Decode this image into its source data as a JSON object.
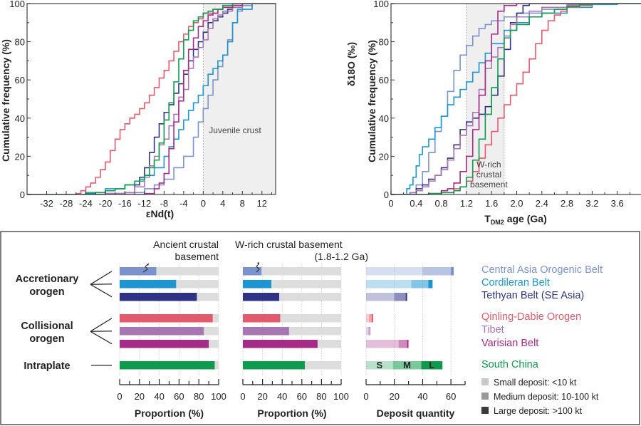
{
  "colors": {
    "caob": "#7b93cc",
    "cordilleran": "#1b95d3",
    "tethyan": "#2e3386",
    "qinling": "#e45a6c",
    "tibet": "#a777b4",
    "varisian": "#a62a87",
    "south_china": "#0f9b4d",
    "bg_bar": "#dddddd",
    "shade": "#efefef"
  },
  "chart_data": [
    {
      "id": "end",
      "type": "line",
      "step": true,
      "xlabel": "εNd(t)",
      "ylabel": "Cumulative frequency (%)",
      "xlim": [
        -36,
        14.8
      ],
      "ylim": [
        0,
        100
      ],
      "xticks": [
        -32,
        -28,
        -24,
        -20,
        -16,
        -12,
        -8,
        -4,
        0,
        4,
        8,
        12
      ],
      "yticks": [
        0,
        20,
        40,
        60,
        80,
        100
      ],
      "shaded_region": {
        "from": 0,
        "to": 14.8,
        "label": "Juvenile crust"
      },
      "series": [
        {
          "name": "Central Asia Orogenic Belt",
          "key": "caob",
          "x": [
            -36,
            -20,
            -16,
            -12,
            -10,
            -8,
            -6,
            -4,
            -2,
            -1,
            0,
            1,
            2,
            3,
            4,
            5,
            6,
            7,
            8,
            10,
            14.8
          ],
          "y": [
            0,
            0.5,
            1,
            3,
            5,
            8,
            14,
            20,
            30,
            38,
            45,
            52,
            60,
            67,
            73,
            81,
            90,
            96,
            99,
            100,
            100
          ]
        },
        {
          "name": "Cordileran Belt",
          "key": "cordilleran",
          "x": [
            -36,
            -24,
            -20,
            -16,
            -14,
            -12,
            -10,
            -8,
            -7,
            -6,
            -5,
            -4,
            -3,
            -2,
            -1,
            0,
            1,
            2,
            3,
            4,
            5,
            6,
            7,
            10,
            14.8
          ],
          "y": [
            0,
            1,
            3,
            5,
            7,
            10,
            14,
            20,
            25,
            29,
            34,
            39,
            44,
            48,
            52,
            57,
            63,
            66,
            70,
            73,
            80,
            90,
            97,
            100,
            100
          ]
        },
        {
          "name": "Tethyan Belt (SE Asia)",
          "key": "tethyan",
          "x": [
            -36,
            -20,
            -16,
            -14,
            -13,
            -12,
            -11,
            -10,
            -9,
            -8,
            -7,
            -6,
            -5,
            -4,
            -3,
            -2,
            -1,
            0,
            1,
            2,
            3,
            4,
            5,
            6,
            8,
            14.8
          ],
          "y": [
            0,
            0.5,
            1,
            5,
            9,
            14,
            22,
            30,
            37,
            43,
            47,
            53,
            58,
            63,
            70,
            76,
            80,
            85,
            90,
            91,
            93,
            95,
            97,
            99,
            100,
            100
          ]
        },
        {
          "name": "Qinling-Dabie Orogen",
          "key": "qinling",
          "x": [
            -36,
            -26,
            -25,
            -24,
            -23,
            -22,
            -21,
            -20,
            -19,
            -18,
            -17,
            -16,
            -15,
            -14,
            -13,
            -12,
            -11,
            -10,
            -9,
            -8,
            -7,
            -6,
            -5,
            -4,
            -3,
            -2,
            -1,
            0,
            2,
            4,
            6,
            14.8
          ],
          "y": [
            0,
            0.5,
            2,
            4,
            6,
            9,
            13,
            17,
            23,
            29,
            34,
            37,
            40,
            42,
            45,
            48,
            52,
            56,
            61,
            65,
            70,
            75,
            80,
            84,
            88,
            90,
            92,
            95,
            97,
            99,
            100,
            100
          ]
        },
        {
          "name": "Tibet",
          "key": "tibet",
          "x": [
            -36,
            -20,
            -16,
            -14,
            -12,
            -11,
            -10,
            -9,
            -8,
            -7,
            -6,
            -5,
            -4,
            -3,
            -2,
            -1,
            0,
            1,
            2,
            3,
            4,
            6,
            8,
            14.8
          ],
          "y": [
            0,
            0.5,
            1,
            4,
            9,
            15,
            20,
            26,
            29,
            36,
            42,
            51,
            55,
            66,
            72,
            77,
            81,
            87,
            92,
            94,
            96,
            98,
            100,
            100
          ]
        },
        {
          "name": "Varisian Belt",
          "key": "varisian",
          "x": [
            -36,
            -12,
            -10,
            -9,
            -8,
            -7,
            -6,
            -5,
            -4,
            -3,
            -2,
            -1,
            0,
            1,
            2,
            3,
            4,
            6,
            8,
            14.8
          ],
          "y": [
            0,
            0.5,
            3,
            6,
            11,
            24,
            38,
            49,
            65,
            76,
            82,
            88,
            91,
            94,
            95,
            97,
            98,
            99,
            100,
            100
          ]
        },
        {
          "name": "South China",
          "key": "south_china",
          "x": [
            -36,
            -24,
            -22,
            -20,
            -18,
            -16,
            -14,
            -13,
            -12,
            -11,
            -10,
            -9,
            -8,
            -7,
            -6,
            -5,
            -4,
            -3,
            -2,
            -1,
            0,
            1,
            2,
            4,
            6,
            14.8
          ],
          "y": [
            0,
            0.5,
            1,
            2,
            3,
            5,
            7,
            8,
            10,
            14,
            18,
            27,
            39,
            48,
            59,
            71,
            81,
            86,
            91,
            93,
            95,
            96,
            97,
            99,
            100,
            100
          ]
        }
      ]
    },
    {
      "id": "tdm",
      "type": "line",
      "step": true,
      "xlabel": "TDM2 age (Ga)",
      "xlabel_main": "T",
      "xlabel_sub": "DM2",
      "xlabel_rest": " age (Ga)",
      "ylabel": "Cumulative frequency (%)",
      "ylabel_extra": "δ18O (‰)",
      "xlim": [
        0,
        4.0
      ],
      "ylim": [
        0,
        100
      ],
      "xticks": [
        0,
        0.4,
        0.8,
        1.2,
        1.6,
        2.0,
        2.4,
        2.8,
        3.2,
        3.6
      ],
      "xtick_labels": [
        "0",
        "0.4",
        "0.8",
        "1.2",
        "1.6",
        "2.0",
        "2.4",
        "2.8",
        "3.2",
        "3.6"
      ],
      "yticks": [
        0,
        20,
        40,
        60,
        80,
        100
      ],
      "shaded_region": {
        "from": 1.2,
        "to": 1.8,
        "label": "W-rich crustal basement"
      },
      "series": [
        {
          "name": "Central Asia Orogenic Belt",
          "key": "caob",
          "x": [
            0,
            0.3,
            0.4,
            0.5,
            0.6,
            0.7,
            0.8,
            0.9,
            1.0,
            1.1,
            1.2,
            1.3,
            1.4,
            1.5,
            1.6,
            1.8,
            2.0,
            2.4,
            2.8,
            3.2,
            4.0
          ],
          "y": [
            0,
            1,
            5,
            12,
            22,
            33,
            41,
            54,
            65,
            73,
            78,
            83,
            87,
            89,
            91,
            93,
            95,
            97,
            99,
            100,
            100
          ]
        },
        {
          "name": "Cordileran Belt",
          "key": "cordilleran",
          "x": [
            0,
            0.25,
            0.3,
            0.35,
            0.4,
            0.45,
            0.5,
            0.6,
            0.7,
            0.8,
            0.9,
            1.0,
            1.1,
            1.2,
            1.3,
            1.4,
            1.5,
            1.6,
            1.8,
            2.0,
            2.2,
            2.4,
            2.8,
            3.2,
            3.6,
            4.0
          ],
          "y": [
            0,
            3,
            5,
            9,
            15,
            21,
            25,
            29,
            35,
            41,
            47,
            51,
            55,
            59,
            64,
            69,
            74,
            79,
            86,
            90,
            93,
            95,
            98,
            99.5,
            100,
            100
          ]
        },
        {
          "name": "Tethyan Belt (SE Asia)",
          "key": "tethyan",
          "x": [
            0,
            0.3,
            0.4,
            0.5,
            0.6,
            0.7,
            0.8,
            0.9,
            1.0,
            1.1,
            1.2,
            1.3,
            1.4,
            1.5,
            1.6,
            1.7,
            1.8,
            1.9,
            2.0,
            2.1,
            2.2,
            4.0
          ],
          "y": [
            0,
            1,
            3,
            5,
            8,
            10,
            14,
            19,
            26,
            34,
            38,
            40,
            42,
            46,
            52,
            62,
            76,
            90,
            95,
            99,
            100,
            100
          ]
        },
        {
          "name": "Qinling-Dabie Orogen",
          "key": "qinling",
          "x": [
            0,
            0.6,
            0.8,
            1.0,
            1.1,
            1.2,
            1.3,
            1.4,
            1.5,
            1.6,
            1.7,
            1.8,
            1.9,
            2.0,
            2.1,
            2.2,
            2.3,
            2.4,
            2.5,
            2.6,
            2.7,
            2.8,
            3.0,
            3.2,
            4.0
          ],
          "y": [
            0,
            0.5,
            1,
            3,
            4,
            7,
            12,
            19,
            26,
            33,
            40,
            47,
            52,
            58,
            64,
            71,
            79,
            86,
            91,
            94,
            96,
            98,
            99,
            100,
            100
          ]
        },
        {
          "name": "Tibet",
          "key": "tibet",
          "x": [
            0,
            0.3,
            0.4,
            0.5,
            0.6,
            0.7,
            0.8,
            0.9,
            1.0,
            1.1,
            1.2,
            1.3,
            1.4,
            1.5,
            1.6,
            1.7,
            1.8,
            1.9,
            2.0,
            2.2,
            2.4,
            2.8,
            3.2,
            4.0
          ],
          "y": [
            0,
            1,
            2,
            4,
            7,
            10,
            13,
            18,
            24,
            31,
            36,
            43,
            55,
            66,
            72,
            77,
            83,
            89,
            93,
            96,
            98,
            99.5,
            100,
            100
          ]
        },
        {
          "name": "Varisian Belt",
          "key": "varisian",
          "x": [
            0,
            0.6,
            0.8,
            0.9,
            1.0,
            1.1,
            1.2,
            1.3,
            1.4,
            1.5,
            1.6,
            1.7,
            1.8,
            2.0,
            2.2,
            4.0
          ],
          "y": [
            0,
            0.5,
            2,
            3,
            6,
            12,
            20,
            34,
            52,
            70,
            84,
            96,
            99,
            100,
            100,
            100
          ]
        },
        {
          "name": "South China",
          "key": "south_china",
          "x": [
            0,
            0.6,
            0.8,
            1.0,
            1.1,
            1.2,
            1.3,
            1.4,
            1.5,
            1.6,
            1.7,
            1.8,
            1.9,
            2.0,
            2.2,
            2.4,
            2.6,
            2.8,
            3.0,
            3.2,
            4.0
          ],
          "y": [
            0,
            0.5,
            1,
            2,
            4,
            9,
            18,
            29,
            42,
            56,
            71,
            82,
            86,
            89,
            93,
            95,
            97,
            98.5,
            99.5,
            100,
            100
          ]
        }
      ]
    },
    {
      "id": "ancient",
      "type": "bar",
      "orientation": "horizontal",
      "header": [
        "Ancient crustal",
        "basement"
      ],
      "xlabel": "Proportion (%)",
      "xlim": [
        0,
        100
      ],
      "xticks": [
        0,
        20,
        40,
        60,
        80,
        100
      ],
      "categories": [
        "Central Asia Orogenic Belt",
        "Cordileran Belt",
        "Tethyan Belt (SE Asia)",
        "Qinling-Dabie Orogen",
        "Tibet",
        "Varisian Belt",
        "South China"
      ],
      "keys": [
        "caob",
        "cordilleran",
        "tethyan",
        "qinling",
        "tibet",
        "varisian",
        "south_china"
      ],
      "values": [
        37,
        57,
        78,
        94,
        85,
        90,
        96
      ]
    },
    {
      "id": "wrich",
      "type": "bar",
      "orientation": "horizontal",
      "header": [
        "W-rich crustal basement",
        "(1.8-1.2 Ga)"
      ],
      "xlabel": "Proportion (%)",
      "xlim": [
        0,
        100
      ],
      "xticks": [
        0,
        20,
        40,
        60,
        80,
        100
      ],
      "categories": [
        "Central Asia Orogenic Belt",
        "Cordileran Belt",
        "Tethyan Belt (SE Asia)",
        "Qinling-Dabie Orogen",
        "Tibet",
        "Varisian Belt",
        "South China"
      ],
      "keys": [
        "caob",
        "cordilleran",
        "tethyan",
        "qinling",
        "tibet",
        "varisian",
        "south_china"
      ],
      "values": [
        19,
        29,
        37,
        38,
        47,
        76,
        63
      ]
    },
    {
      "id": "deposits",
      "type": "bar",
      "orientation": "horizontal",
      "stacked": true,
      "xlabel": "Deposit quantity",
      "xlim": [
        0,
        70
      ],
      "xticks": [
        0,
        20,
        40,
        60
      ],
      "categories": [
        "Central Asia Orogenic Belt",
        "Cordileran Belt",
        "Tethyan Belt (SE Asia)",
        "Qinling-Dabie Orogen",
        "Tibet",
        "Varisian Belt",
        "South China"
      ],
      "keys": [
        "caob",
        "cordilleran",
        "tethyan",
        "qinling",
        "tibet",
        "varisian",
        "south_china"
      ],
      "series": [
        {
          "name": "Small deposit",
          "label": "S",
          "values": [
            40,
            32,
            20,
            2,
            1.5,
            23,
            19
          ]
        },
        {
          "name": "Medium deposit",
          "label": "M",
          "values": [
            20,
            12,
            8,
            2,
            1,
            6,
            20
          ]
        },
        {
          "name": "Large deposit",
          "label": "L",
          "values": [
            2,
            3,
            1,
            1,
            0.5,
            1,
            15
          ]
        }
      ],
      "segment_labels_on": "South China"
    }
  ],
  "groups": [
    {
      "label": [
        "Accretionary",
        "orogen"
      ],
      "rows": [
        0,
        1,
        2
      ]
    },
    {
      "label": [
        "Collisional",
        "orogen"
      ],
      "rows": [
        3,
        4,
        5
      ]
    },
    {
      "label": [
        "Intraplate"
      ],
      "rows": [
        6
      ]
    }
  ],
  "legend": {
    "regions": [
      {
        "name": "Central Asia Orogenic Belt",
        "key": "caob"
      },
      {
        "name": "Cordileran Belt",
        "key": "cordilleran"
      },
      {
        "name": "Tethyan Belt (SE Asia)",
        "key": "tethyan"
      },
      {
        "name": "Qinling-Dabie Orogen",
        "key": "qinling"
      },
      {
        "name": "Tibet",
        "key": "tibet"
      },
      {
        "name": "Varisian Belt",
        "key": "varisian"
      },
      {
        "name": "South China",
        "key": "south_china"
      }
    ],
    "sizes": [
      {
        "label": "Small deposit:  <10 kt",
        "color": "#c8c8c8"
      },
      {
        "label": "Medium deposit:  10-100 kt",
        "color": "#999999"
      },
      {
        "label": "Large deposit:  >100 kt",
        "color": "#3a3a3a"
      }
    ]
  }
}
